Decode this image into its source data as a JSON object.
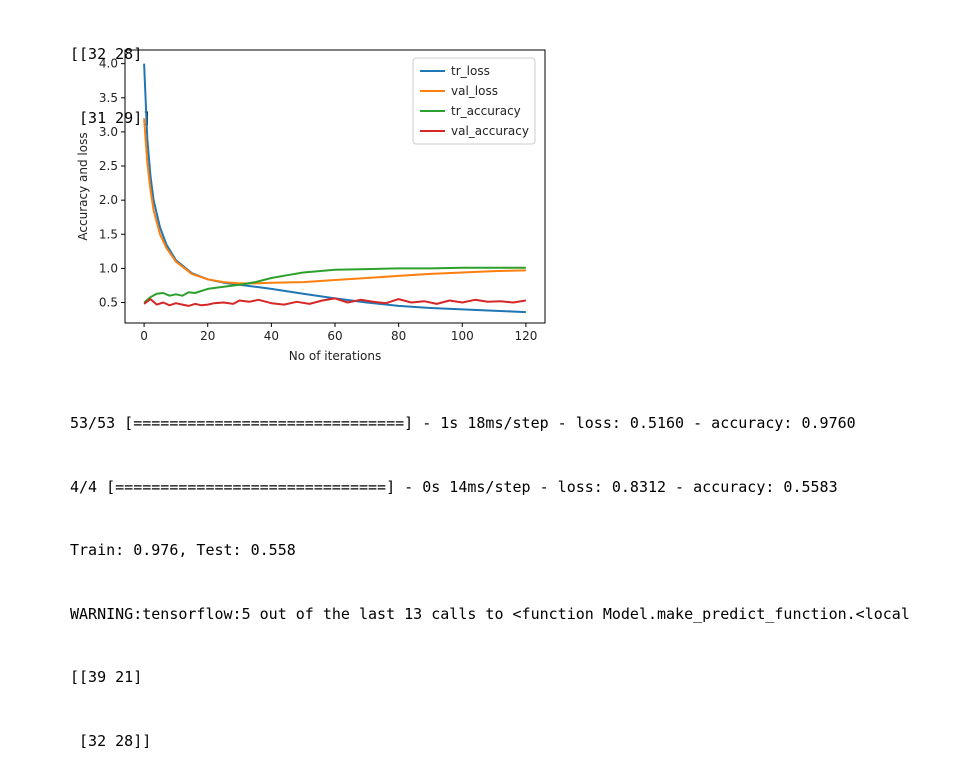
{
  "top_output": [
    "[[32 28]",
    " [31 29]]"
  ],
  "bottom_output": [
    "53/53 [==============================] - 1s 18ms/step - loss: 0.5160 - accuracy: 0.9760",
    "4/4 [==============================] - 0s 14ms/step - loss: 0.8312 - accuracy: 0.5583",
    "Train: 0.976, Test: 0.558",
    "WARNING:tensorflow:5 out of the last 13 calls to <function Model.make_predict_function.<local",
    "[[39 21]",
    " [32 28]]"
  ],
  "chart_data": {
    "type": "line",
    "title": "",
    "xlabel": "No of iterations",
    "ylabel": "Accuracy and loss",
    "xlim": [
      -6,
      126
    ],
    "ylim": [
      0.2,
      4.2
    ],
    "xticks": [
      0,
      20,
      40,
      60,
      80,
      100,
      120
    ],
    "yticks": [
      0.5,
      1.0,
      1.5,
      2.0,
      2.5,
      3.0,
      3.5,
      4.0
    ],
    "ytick_labels": [
      "0.5",
      "1.0",
      "1.5",
      "2.0",
      "2.5",
      "3.0",
      "3.5",
      "4.0"
    ],
    "grid": false,
    "legend_position": "top-right",
    "series": [
      {
        "name": "tr_loss",
        "color": "#1f77b4",
        "x": [
          0,
          1,
          2,
          3,
          5,
          7,
          10,
          15,
          20,
          25,
          30,
          35,
          40,
          50,
          60,
          70,
          80,
          90,
          100,
          110,
          120
        ],
        "y": [
          4.0,
          2.9,
          2.35,
          2.0,
          1.6,
          1.35,
          1.12,
          0.93,
          0.84,
          0.79,
          0.76,
          0.73,
          0.7,
          0.63,
          0.56,
          0.5,
          0.45,
          0.42,
          0.4,
          0.38,
          0.36
        ]
      },
      {
        "name": "val_loss",
        "color": "#ff7f0e",
        "x": [
          0,
          1,
          2,
          3,
          5,
          7,
          10,
          15,
          20,
          25,
          30,
          35,
          40,
          50,
          60,
          70,
          80,
          90,
          100,
          110,
          120
        ],
        "y": [
          3.2,
          2.55,
          2.15,
          1.85,
          1.5,
          1.3,
          1.1,
          0.92,
          0.84,
          0.8,
          0.78,
          0.78,
          0.79,
          0.8,
          0.83,
          0.86,
          0.89,
          0.92,
          0.94,
          0.96,
          0.97
        ]
      },
      {
        "name": "tr_accuracy",
        "color": "#2ca02c",
        "x": [
          0,
          2,
          4,
          6,
          8,
          10,
          12,
          14,
          16,
          18,
          20,
          25,
          30,
          35,
          40,
          45,
          50,
          55,
          60,
          70,
          80,
          90,
          100,
          110,
          120
        ],
        "y": [
          0.5,
          0.58,
          0.63,
          0.64,
          0.6,
          0.62,
          0.6,
          0.65,
          0.64,
          0.67,
          0.7,
          0.73,
          0.76,
          0.8,
          0.86,
          0.9,
          0.94,
          0.96,
          0.98,
          0.99,
          1.0,
          1.0,
          1.01,
          1.01,
          1.01
        ]
      },
      {
        "name": "val_accuracy",
        "color": "#d62728",
        "x": [
          0,
          2,
          4,
          6,
          8,
          10,
          12,
          14,
          16,
          18,
          20,
          22,
          25,
          28,
          30,
          33,
          36,
          40,
          44,
          48,
          52,
          56,
          60,
          64,
          68,
          72,
          76,
          80,
          84,
          88,
          92,
          96,
          100,
          104,
          108,
          112,
          116,
          120
        ],
        "y": [
          0.48,
          0.55,
          0.47,
          0.5,
          0.46,
          0.49,
          0.47,
          0.45,
          0.48,
          0.46,
          0.47,
          0.49,
          0.5,
          0.48,
          0.53,
          0.51,
          0.54,
          0.49,
          0.47,
          0.51,
          0.48,
          0.53,
          0.56,
          0.5,
          0.54,
          0.51,
          0.49,
          0.55,
          0.5,
          0.52,
          0.48,
          0.53,
          0.5,
          0.54,
          0.51,
          0.52,
          0.5,
          0.53
        ]
      }
    ]
  }
}
